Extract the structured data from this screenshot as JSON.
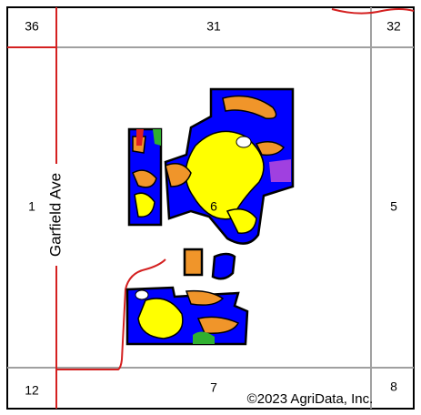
{
  "sections": {
    "top_left": "36",
    "top_center": "31",
    "top_right": "32",
    "middle_left": "1",
    "middle_center": "6",
    "middle_right": "5",
    "bottom_left": "12",
    "bottom_center": "7",
    "bottom_right": "8"
  },
  "road": "Garfield Ave",
  "copyright": "©2023 AgriData, Inc."
}
